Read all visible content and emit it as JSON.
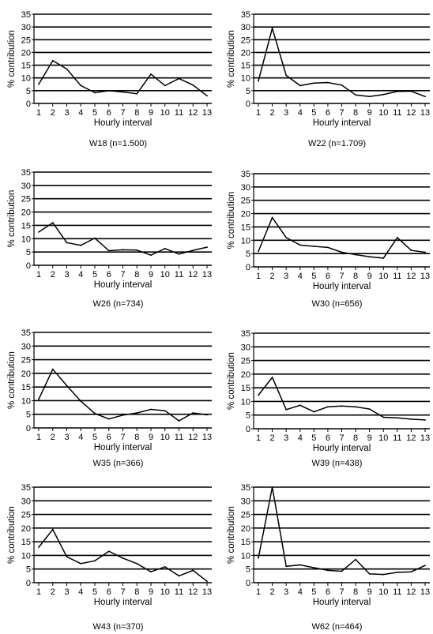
{
  "chart_data": [
    {
      "type": "line",
      "caption": "W18 (n=1.500)",
      "xlabel": "Hourly interval",
      "ylabel": "% contribution",
      "ylim": [
        0,
        35
      ],
      "yticks": [
        "0",
        "5",
        "10",
        "15",
        "20",
        "25",
        "30",
        "35"
      ],
      "categories": [
        "1",
        "2",
        "3",
        "4",
        "5",
        "6",
        "7",
        "8",
        "9",
        "10",
        "11",
        "12",
        "13"
      ],
      "grid": "horizontal",
      "values": [
        7.5,
        16.8,
        13.5,
        7,
        4.2,
        5,
        4.5,
        3.8,
        11.5,
        7,
        9.8,
        7.2,
        3
      ]
    },
    {
      "type": "line",
      "caption": "W22 (n=1.709)",
      "xlabel": "Hourly interval",
      "ylabel": "% contribution",
      "ylim": [
        0,
        35
      ],
      "yticks": [
        "0",
        "5",
        "10",
        "15",
        "20",
        "25",
        "30",
        "35"
      ],
      "categories": [
        "1",
        "2",
        "3",
        "4",
        "5",
        "6",
        "7",
        "8",
        "9",
        "10",
        "11",
        "12",
        "13"
      ],
      "grid": "horizontal",
      "values": [
        8.8,
        29.5,
        11,
        7,
        8,
        8.2,
        7.2,
        3.3,
        2.7,
        3.5,
        4.7,
        4.8,
        2.7
      ]
    },
    {
      "type": "line",
      "caption": "W26 (n=734)",
      "xlabel": "Hourly interval",
      "ylabel": "% contribution",
      "ylim": [
        0,
        35
      ],
      "yticks": [
        "0",
        "5",
        "10",
        "15",
        "20",
        "25",
        "30",
        "35"
      ],
      "categories": [
        "1",
        "2",
        "3",
        "4",
        "5",
        "6",
        "7",
        "8",
        "9",
        "10",
        "11",
        "12",
        "13"
      ],
      "grid": "horizontal",
      "values": [
        12.5,
        16,
        8.5,
        7.5,
        10.2,
        5.5,
        5.8,
        5.7,
        3.8,
        6.3,
        4.2,
        5.6,
        6.8
      ]
    },
    {
      "type": "line",
      "caption": "W30 (n=656)",
      "xlabel": "Hourly interval",
      "ylabel": "% contribution",
      "ylim": [
        0,
        35
      ],
      "yticks": [
        "0",
        "5",
        "10",
        "15",
        "20",
        "25",
        "30",
        "35"
      ],
      "categories": [
        "1",
        "2",
        "3",
        "4",
        "5",
        "6",
        "7",
        "8",
        "9",
        "10",
        "11",
        "12",
        "13"
      ],
      "grid": "horizontal",
      "values": [
        5.8,
        18.5,
        11,
        8.2,
        7.7,
        7.3,
        5.5,
        4.6,
        3.8,
        3.3,
        11,
        6.2,
        5.5
      ]
    },
    {
      "type": "line",
      "caption": "W35 (n=366)",
      "xlabel": "Hourly interval",
      "ylabel": "% contribution",
      "ylim": [
        0,
        35
      ],
      "yticks": [
        "0",
        "5",
        "10",
        "15",
        "20",
        "25",
        "30",
        "35"
      ],
      "categories": [
        "1",
        "2",
        "3",
        "4",
        "5",
        "6",
        "7",
        "8",
        "9",
        "10",
        "11",
        "12",
        "13"
      ],
      "grid": "horizontal",
      "values": [
        10.5,
        21.5,
        15.5,
        9.8,
        5.3,
        3.3,
        4.7,
        5.5,
        6.8,
        6.3,
        2.6,
        5.5,
        4.8
      ]
    },
    {
      "type": "line",
      "caption": "W39 (n=438)",
      "xlabel": "Hourly interval",
      "ylabel": "% contribution",
      "ylim": [
        0,
        35
      ],
      "yticks": [
        "0",
        "5",
        "10",
        "15",
        "20",
        "25",
        "30",
        "35"
      ],
      "categories": [
        "1",
        "2",
        "3",
        "4",
        "5",
        "6",
        "7",
        "8",
        "9",
        "10",
        "11",
        "12",
        "13"
      ],
      "grid": "horizontal",
      "values": [
        12.3,
        18.8,
        7,
        8.6,
        6.2,
        8,
        8.3,
        8,
        7.2,
        4.2,
        4,
        3.5,
        3.2
      ]
    },
    {
      "type": "line",
      "caption": "W43 (n=370)",
      "xlabel": "Hourly interval",
      "ylabel": "% contribution",
      "ylim": [
        0,
        35
      ],
      "yticks": [
        "0",
        "5",
        "10",
        "15",
        "20",
        "25",
        "30",
        "35"
      ],
      "categories": [
        "1",
        "2",
        "3",
        "4",
        "5",
        "6",
        "7",
        "8",
        "9",
        "10",
        "11",
        "12",
        "13"
      ],
      "grid": "horizontal",
      "values": [
        13,
        19.5,
        9.5,
        7,
        8,
        11.5,
        9,
        7,
        4,
        5.8,
        2.5,
        4.5,
        0.5
      ]
    },
    {
      "type": "line",
      "caption": "W62 (n=464)",
      "xlabel": "Hourly interval",
      "ylabel": "% contribution",
      "ylim": [
        0,
        35
      ],
      "yticks": [
        "0",
        "5",
        "10",
        "15",
        "20",
        "25",
        "30",
        "35"
      ],
      "categories": [
        "1",
        "2",
        "3",
        "4",
        "5",
        "6",
        "7",
        "8",
        "9",
        "10",
        "11",
        "12",
        "13"
      ],
      "grid": "horizontal",
      "values": [
        9,
        35,
        6,
        6.5,
        5.5,
        4.5,
        4.2,
        8.5,
        3.2,
        3,
        3.8,
        4,
        6.3
      ]
    }
  ]
}
